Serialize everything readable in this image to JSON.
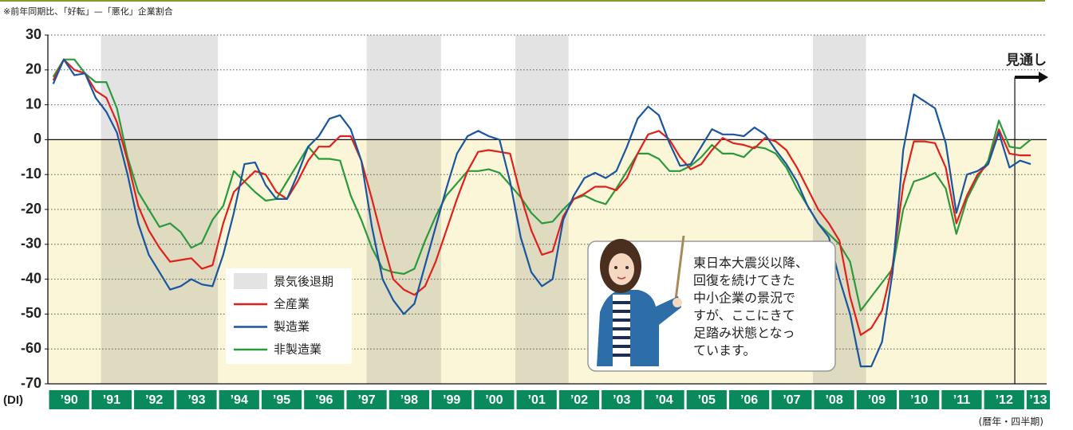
{
  "chart_data": {
    "type": "line",
    "note": "※前年同期比、「好転」—「悪化」企業割合",
    "y_unit": "(DI)",
    "x_unit": "(暦年・四半期)",
    "forecast_label": "見通し",
    "forecast_start": 91,
    "shade_label": "景気後退期",
    "shade_color": "#e3e3e3",
    "shaded_periods": [
      [
        5,
        16
      ],
      [
        30,
        37
      ],
      [
        44,
        49
      ],
      [
        72,
        77
      ]
    ],
    "negative_fill": "#fbf6d8",
    "callout": [
      "東日本大震災以降、",
      "回復を続けてきた",
      "中小企業の景況で",
      "すが、ここにきて",
      "足踏み状態となっ",
      "ています。"
    ],
    "categories": [
      "’90",
      null,
      null,
      null,
      "’91",
      null,
      null,
      null,
      "’92",
      null,
      null,
      null,
      "’93",
      null,
      null,
      null,
      "’94",
      null,
      null,
      null,
      "’95",
      null,
      null,
      null,
      "’96",
      null,
      null,
      null,
      "’97",
      null,
      null,
      null,
      "’98",
      null,
      null,
      null,
      "’99",
      null,
      null,
      null,
      "’00",
      null,
      null,
      null,
      "’01",
      null,
      null,
      null,
      "’02",
      null,
      null,
      null,
      "’03",
      null,
      null,
      null,
      "’04",
      null,
      null,
      null,
      "’05",
      null,
      null,
      null,
      "’06",
      null,
      null,
      null,
      "’07",
      null,
      null,
      null,
      "’08",
      null,
      null,
      null,
      "’09",
      null,
      null,
      null,
      "’10",
      null,
      null,
      null,
      "’11",
      null,
      null,
      null,
      "’12",
      null,
      null,
      null,
      "’13"
    ],
    "ylim": [
      -70,
      30
    ],
    "yticks": [
      -70,
      -60,
      -50,
      -40,
      -30,
      -20,
      -10,
      0,
      10,
      20,
      30
    ],
    "grid": true,
    "series": [
      {
        "name": "全産業",
        "color": "#e0201c",
        "values": [
          17,
          23,
          20,
          19,
          14,
          12,
          5,
          -6,
          -19,
          -26,
          -31,
          -35,
          -34.5,
          -34,
          -37,
          -36,
          -24,
          -15,
          -12,
          -9,
          -10,
          -15,
          -17,
          -12,
          -6,
          -2,
          -2,
          1,
          1,
          -6,
          -17,
          -29,
          -40,
          -43,
          -44.5,
          -42,
          -35,
          -26,
          -17,
          -9,
          -3.5,
          -3,
          -3.5,
          -4,
          -16,
          -26,
          -33,
          -32,
          -22,
          -17,
          -15.5,
          -13.5,
          -13.5,
          -14.5,
          -11,
          -4,
          1.5,
          2.5,
          0,
          -5,
          -8.5,
          -7,
          -3,
          0.5,
          -1,
          -1.5,
          -2.5,
          0.5,
          -0.5,
          -3,
          -8,
          -14,
          -20,
          -24,
          -29,
          -45,
          -56,
          -54,
          -49,
          -36,
          -13,
          -0.5,
          -0.5,
          -1,
          -8,
          -24,
          -16,
          -10,
          -7,
          3,
          -4,
          -4.5,
          -4.5
        ]
      },
      {
        "name": "製造業",
        "color": "#1a55a0",
        "values": [
          16,
          23,
          18.5,
          19,
          12,
          8,
          2,
          -10,
          -24,
          -33,
          -38,
          -43,
          -42,
          -40,
          -41.5,
          -42,
          -33,
          -21,
          -7,
          -6.5,
          -13,
          -17,
          -17,
          -10,
          -2,
          1,
          6,
          7,
          3,
          -6,
          -25,
          -40,
          -46,
          -50,
          -47,
          -36,
          -25,
          -14,
          -4,
          1,
          2.5,
          1,
          0,
          -12,
          -28,
          -38,
          -42,
          -40,
          -23,
          -16,
          -11,
          -9.5,
          -11,
          -9,
          -2,
          6,
          9.5,
          7,
          -1,
          -7.5,
          -7,
          -2,
          3,
          1.5,
          1.5,
          1,
          3.5,
          1.5,
          -3,
          -7,
          -12,
          -19,
          -24,
          -28,
          -40,
          -50,
          -65,
          -65,
          -58,
          -38,
          -3,
          13,
          11,
          9,
          -1,
          -21,
          -10,
          -9,
          -7,
          2,
          -8,
          -6,
          -7
        ]
      },
      {
        "name": "非製造業",
        "color": "#2a9a3c",
        "values": [
          18,
          23,
          23,
          19,
          16.5,
          16.5,
          9,
          -5,
          -15,
          -20,
          -25,
          -24,
          -26.5,
          -31,
          -29.5,
          -23,
          -19,
          -9,
          -12,
          -15,
          -17.5,
          -17,
          -12,
          -7,
          -2,
          -5.5,
          -5.5,
          -6,
          -16,
          -23,
          -31,
          -37,
          -38,
          -38.5,
          -37,
          -29,
          -22,
          -16,
          -12.5,
          -9,
          -9,
          -8.5,
          -9.5,
          -13,
          -16.5,
          -21,
          -24,
          -23.5,
          -20,
          -17,
          -16,
          -17.5,
          -18.5,
          -14,
          -9,
          -4,
          -4,
          -5.5,
          -9,
          -9,
          -7.5,
          -5,
          -1.5,
          -4,
          -4,
          -5,
          -2,
          -2.5,
          -4,
          -8,
          -14,
          -19,
          -24,
          -27,
          -30,
          -35,
          -49,
          -45,
          -41,
          -37,
          -20,
          -12,
          -11,
          -9.5,
          -14,
          -27,
          -17,
          -11,
          -6,
          5.5,
          -2,
          -2.5,
          0
        ]
      }
    ]
  }
}
